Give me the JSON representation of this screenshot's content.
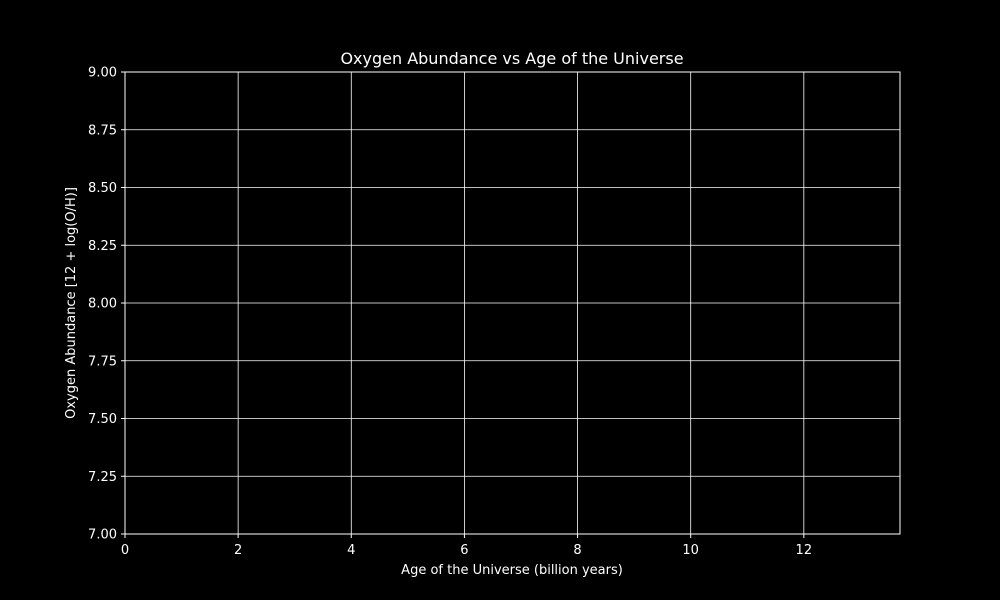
{
  "chart_data": {
    "type": "line",
    "title": "Oxygen Abundance vs Age of the Universe",
    "xlabel": "Age of the Universe (billion years)",
    "ylabel": "Oxygen Abundance [12 + log(O/H)]",
    "xlim": [
      0,
      13.7
    ],
    "ylim": [
      7.0,
      9.0
    ],
    "x_ticks": [
      "0",
      "2",
      "4",
      "6",
      "8",
      "10",
      "12"
    ],
    "y_ticks": [
      "7.00",
      "7.25",
      "7.50",
      "7.75",
      "8.00",
      "8.25",
      "8.50",
      "8.75",
      "9.00"
    ],
    "grid": true,
    "series": [],
    "colors": {
      "background": "#000000",
      "axes_face": "#000000",
      "foreground": "#ffffff",
      "grid": "#ffffff"
    }
  }
}
